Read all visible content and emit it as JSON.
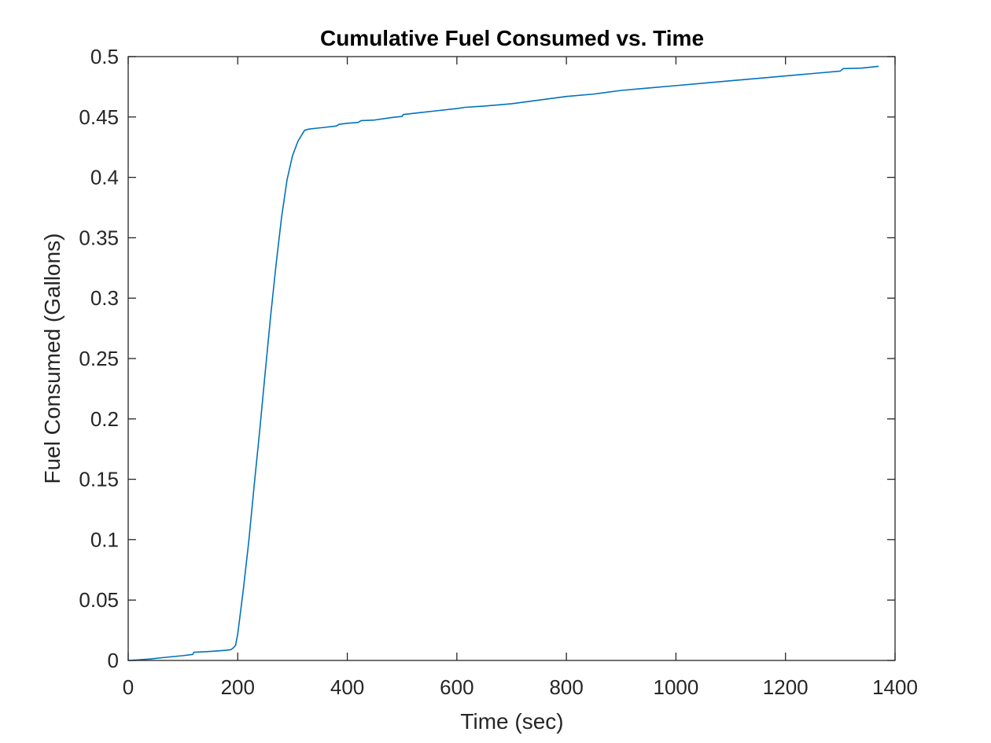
{
  "chart_data": {
    "type": "line",
    "title": "Cumulative Fuel Consumed vs. Time",
    "xlabel": "Time (sec)",
    "ylabel": "Fuel Consumed (Gallons)",
    "xlim": [
      0,
      1400
    ],
    "ylim": [
      0,
      0.5
    ],
    "x_ticks": [
      0,
      200,
      400,
      600,
      800,
      1000,
      1200,
      1400
    ],
    "x_tick_labels": [
      "0",
      "200",
      "400",
      "600",
      "800",
      "1000",
      "1200",
      "1400"
    ],
    "y_ticks": [
      0,
      0.05,
      0.1,
      0.15,
      0.2,
      0.25,
      0.3,
      0.35,
      0.4,
      0.45,
      0.5
    ],
    "y_tick_labels": [
      "0",
      "0.05",
      "0.1",
      "0.15",
      "0.2",
      "0.25",
      "0.3",
      "0.35",
      "0.4",
      "0.45",
      "0.5"
    ],
    "grid": false,
    "line_color": "#0072BD",
    "series": [
      {
        "x": [
          0,
          20,
          40,
          60,
          80,
          100,
          118,
          120,
          140,
          160,
          180,
          188,
          192,
          196,
          200,
          210,
          220,
          230,
          240,
          250,
          260,
          270,
          280,
          290,
          300,
          310,
          318,
          322,
          326,
          330,
          340,
          360,
          380,
          385,
          400,
          420,
          425,
          450,
          480,
          500,
          502,
          530,
          560,
          600,
          615,
          650,
          700,
          750,
          800,
          850,
          900,
          950,
          1000,
          1050,
          1100,
          1150,
          1200,
          1250,
          1300,
          1305,
          1340,
          1370
        ],
        "y": [
          0,
          0.0005,
          0.0012,
          0.0022,
          0.0031,
          0.004,
          0.005,
          0.0068,
          0.0072,
          0.0078,
          0.0085,
          0.009,
          0.0105,
          0.0125,
          0.022,
          0.058,
          0.098,
          0.145,
          0.19,
          0.238,
          0.285,
          0.328,
          0.367,
          0.398,
          0.418,
          0.43,
          0.436,
          0.439,
          0.4395,
          0.44,
          0.4405,
          0.4415,
          0.4425,
          0.444,
          0.4448,
          0.4455,
          0.447,
          0.4475,
          0.4495,
          0.4505,
          0.452,
          0.4535,
          0.455,
          0.457,
          0.458,
          0.459,
          0.461,
          0.464,
          0.467,
          0.469,
          0.472,
          0.474,
          0.476,
          0.478,
          0.48,
          0.482,
          0.484,
          0.486,
          0.488,
          0.49,
          0.4905,
          0.492
        ]
      }
    ]
  }
}
